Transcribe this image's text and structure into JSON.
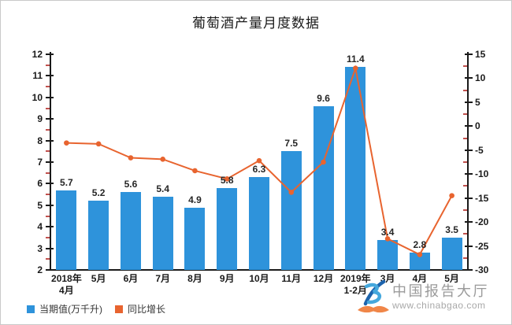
{
  "title": "葡萄酒产量月度数据",
  "legend": [
    {
      "label": "当期值(万千升)",
      "color": "#2e93db"
    },
    {
      "label": "同比增长",
      "color": "#e8642f"
    }
  ],
  "watermark": {
    "brand": "中国报告大厅",
    "url": "www.chinabgao.com"
  },
  "chart_data": {
    "type": "bar",
    "title": "葡萄酒产量月度数据",
    "categories": [
      "2018年\n4月",
      "5月",
      "6月",
      "7月",
      "8月",
      "9月",
      "10月",
      "11月",
      "12月",
      "2019年\n1-2月",
      "3月",
      "4月",
      "5月"
    ],
    "series": [
      {
        "name": "当期值(万千升)",
        "type": "bar",
        "axis": "left",
        "color": "#2e93db",
        "values": [
          5.7,
          5.2,
          5.6,
          5.4,
          4.9,
          5.8,
          6.3,
          7.5,
          9.6,
          11.4,
          3.4,
          2.8,
          3.5
        ],
        "data_labels_shown": true
      },
      {
        "name": "同比增长",
        "type": "line",
        "axis": "right",
        "color": "#e8642f",
        "values": [
          -3.5,
          -3.7,
          -6.6,
          -6.9,
          -9.3,
          -11.0,
          -7.2,
          -13.8,
          -7.5,
          12.1,
          -23.5,
          -26.8,
          -14.5
        ],
        "values_estimated_from_pixels": true,
        "data_labels_shown": false
      }
    ],
    "left_axis": {
      "min": 2,
      "max": 12,
      "step": 1,
      "minor_step": 0.5
    },
    "right_axis": {
      "min": -30,
      "max": 15,
      "step": 5,
      "minor_step": 2.5
    },
    "grid": false,
    "legend_position": "bottom-left",
    "tick_color": "#1a1a1a",
    "minor_tick_color": "#c0504d"
  }
}
